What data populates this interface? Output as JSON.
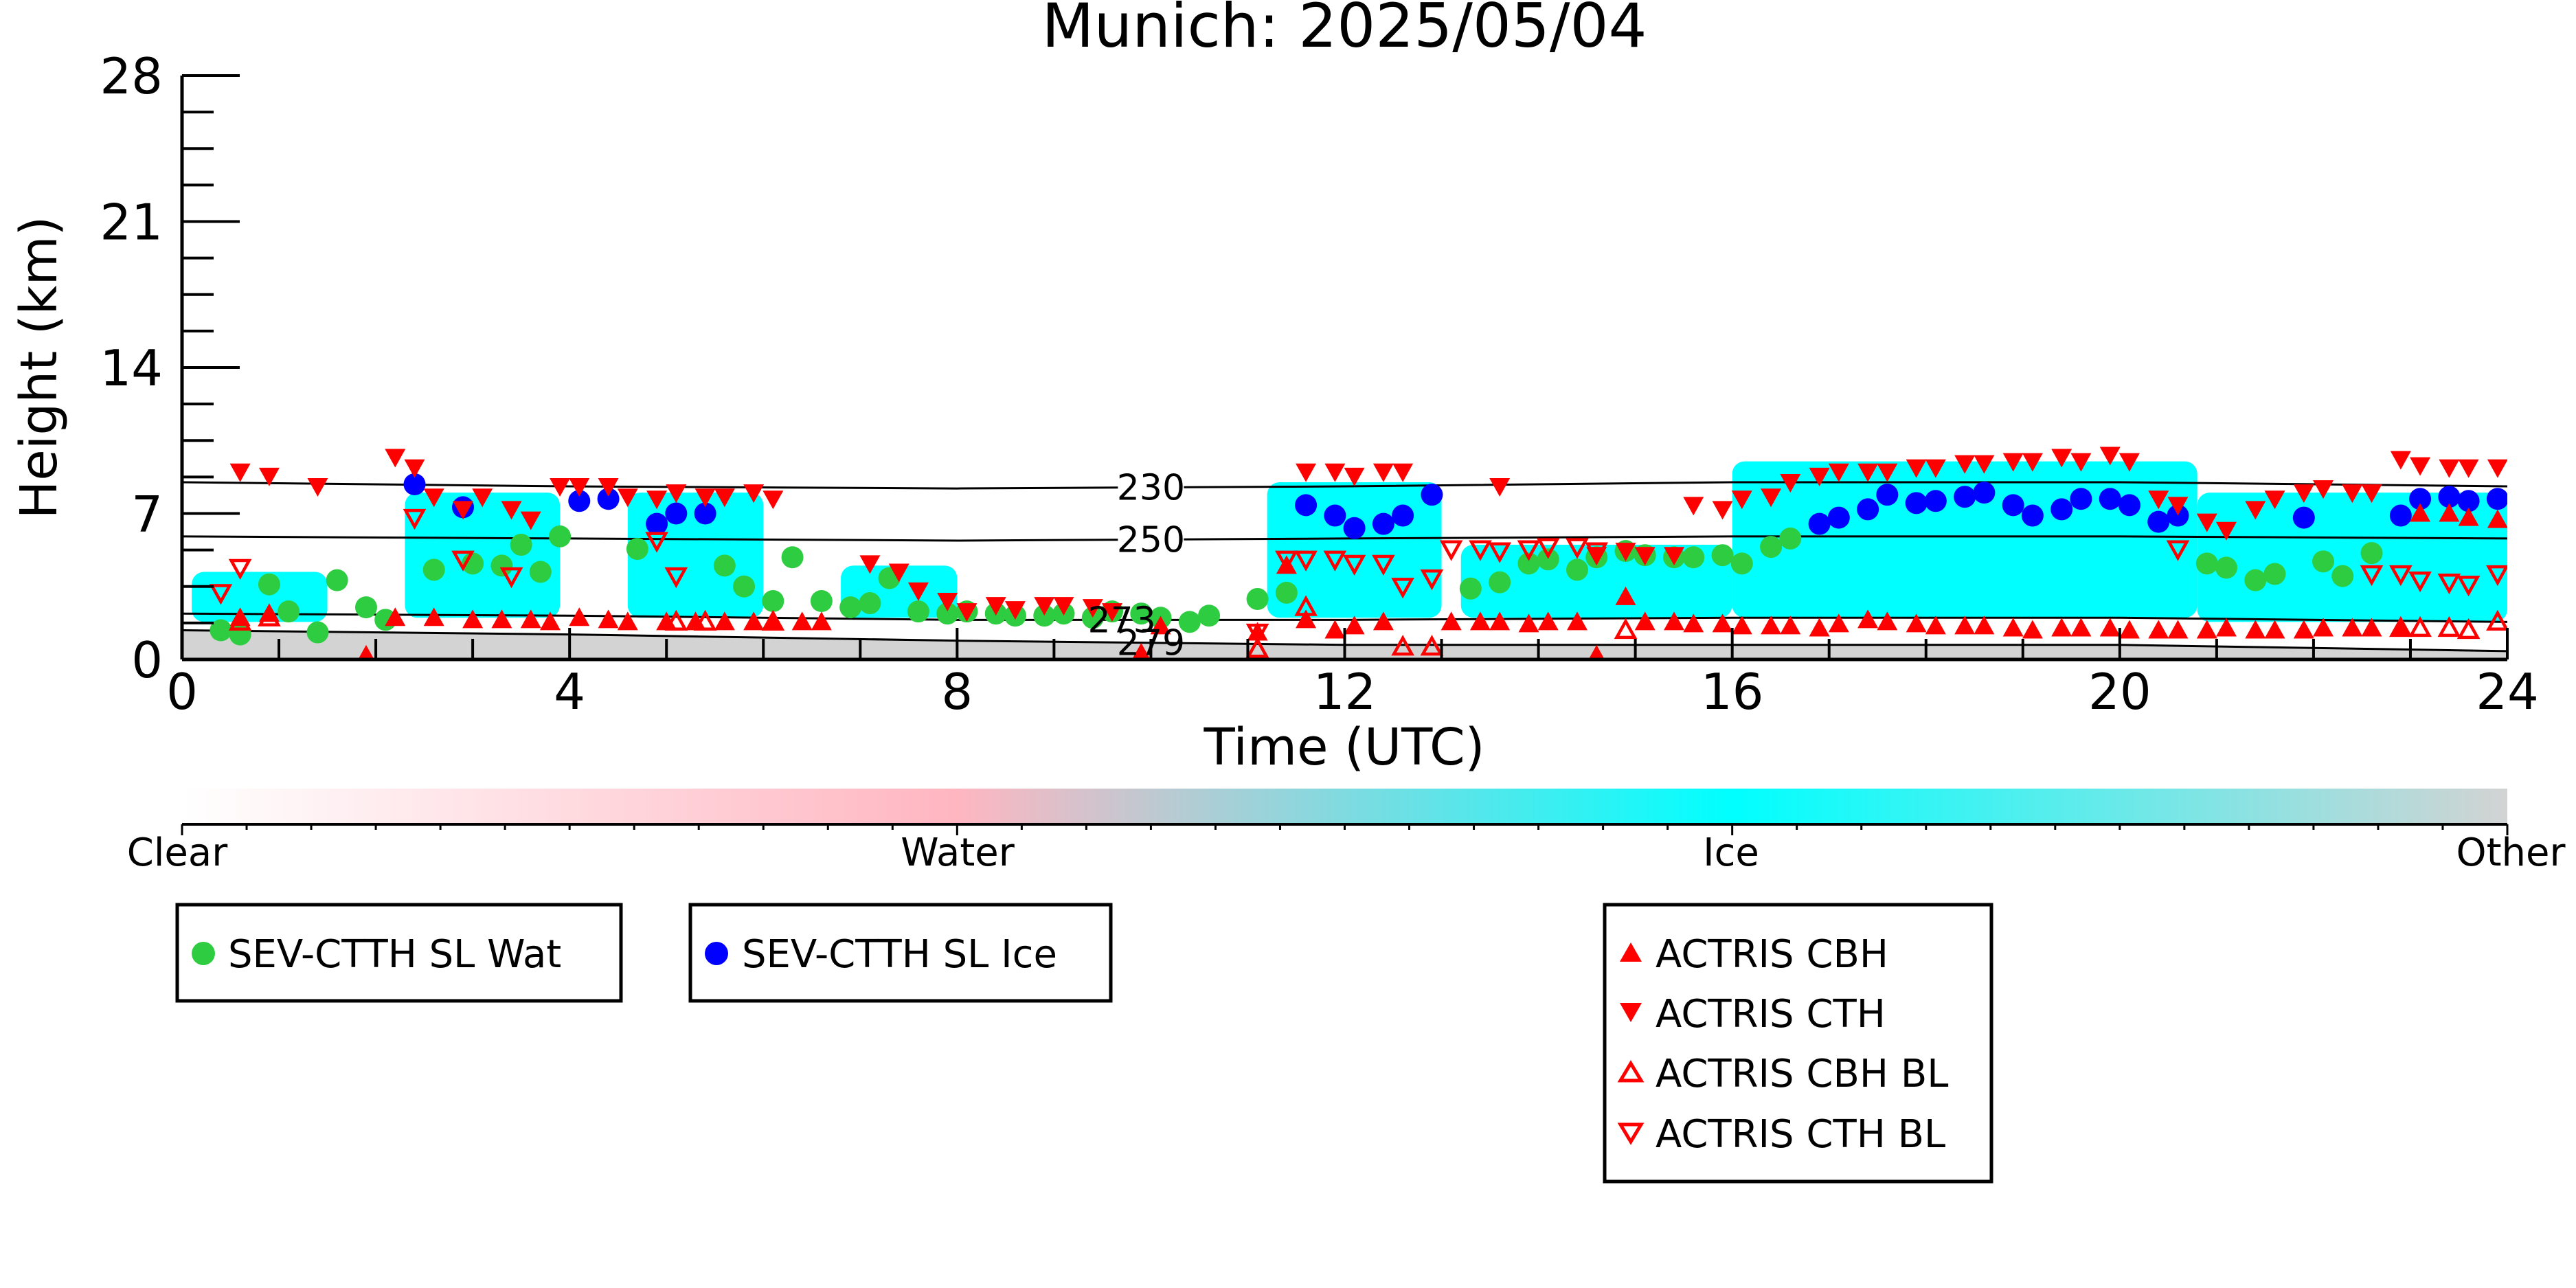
{
  "chart_data": {
    "type": "scatter",
    "title": "Munich: 2025/05/04",
    "xlabel": "Time (UTC)",
    "ylabel": "Height (km)",
    "xlim": [
      0,
      24
    ],
    "ylim": [
      0,
      28
    ],
    "xticks": [
      0,
      4,
      8,
      12,
      16,
      20,
      24
    ],
    "yticks": [
      0,
      7,
      14,
      21,
      28
    ],
    "colorbar": {
      "labels": [
        "Clear",
        "Water",
        "Ice",
        "Other"
      ],
      "colors": [
        "#ffffff",
        "#ffb6c1",
        "#00ffff",
        "#d3d3d3"
      ]
    },
    "cloud_mask_ice": [
      {
        "x": [
          0.1,
          1.5
        ],
        "y": [
          1.8,
          4.2
        ]
      },
      {
        "x": [
          2.3,
          3.9
        ],
        "y": [
          2.0,
          8.0
        ]
      },
      {
        "x": [
          4.6,
          6.0
        ],
        "y": [
          2.0,
          8.0
        ]
      },
      {
        "x": [
          6.8,
          8.0
        ],
        "y": [
          2.0,
          4.5
        ]
      },
      {
        "x": [
          11.2,
          13.0
        ],
        "y": [
          2.0,
          8.5
        ]
      },
      {
        "x": [
          13.2,
          16.0
        ],
        "y": [
          2.0,
          5.5
        ]
      },
      {
        "x": [
          16.0,
          20.8
        ],
        "y": [
          2.0,
          9.5
        ]
      },
      {
        "x": [
          20.8,
          24.0
        ],
        "y": [
          1.8,
          8.0
        ]
      }
    ],
    "isotherms": [
      {
        "label": "230",
        "x": [
          0,
          4,
          8,
          12,
          16,
          20,
          24
        ],
        "y": [
          8.5,
          8.3,
          8.2,
          8.3,
          8.5,
          8.5,
          8.3
        ]
      },
      {
        "label": "250",
        "x": [
          0,
          4,
          8,
          12,
          16,
          20,
          24
        ],
        "y": [
          5.9,
          5.8,
          5.7,
          5.8,
          5.9,
          5.9,
          5.8
        ]
      },
      {
        "label": "273",
        "x": [
          0,
          4,
          8,
          12,
          16,
          20,
          24
        ],
        "y": [
          2.2,
          2.1,
          1.9,
          1.9,
          2.0,
          2.0,
          1.8
        ]
      },
      {
        "label": "279",
        "x": [
          0,
          4,
          8,
          12,
          16,
          20,
          24
        ],
        "y": [
          1.4,
          1.2,
          0.9,
          0.7,
          0.7,
          0.7,
          0.4
        ]
      }
    ],
    "series": [
      {
        "name": "SEV-CTTH SL Wat",
        "marker": "circle",
        "color": "#2ecc40",
        "x": [
          0.4,
          0.6,
          0.9,
          1.1,
          1.4,
          1.6,
          1.9,
          2.1,
          2.6,
          3.0,
          3.3,
          3.5,
          3.7,
          3.9,
          4.7,
          5.6,
          5.8,
          6.1,
          6.3,
          6.6,
          6.9,
          7.1,
          7.3,
          7.6,
          7.9,
          8.1,
          8.4,
          8.6,
          8.9,
          9.1,
          9.4,
          9.6,
          9.9,
          10.1,
          10.4,
          10.6,
          11.1,
          11.4,
          13.3,
          13.6,
          13.9,
          14.1,
          14.4,
          14.6,
          14.9,
          15.1,
          15.4,
          15.6,
          15.9,
          16.1,
          16.4,
          16.6,
          20.9,
          21.1,
          21.4,
          21.6,
          22.1,
          22.3,
          22.6
        ],
        "y": [
          1.4,
          1.2,
          3.6,
          2.3,
          1.3,
          3.8,
          2.5,
          1.9,
          4.3,
          4.6,
          4.5,
          5.5,
          4.2,
          5.9,
          5.3,
          4.5,
          3.5,
          2.8,
          4.9,
          2.8,
          2.5,
          2.7,
          3.9,
          2.3,
          2.2,
          2.3,
          2.2,
          2.1,
          2.1,
          2.2,
          2.0,
          2.3,
          2.2,
          2.0,
          1.8,
          2.1,
          2.9,
          3.2,
          3.4,
          3.7,
          4.6,
          4.8,
          4.3,
          4.9,
          5.2,
          5.0,
          4.9,
          4.9,
          5.0,
          4.6,
          5.4,
          5.8,
          4.6,
          4.4,
          3.8,
          4.1,
          4.7,
          4.0,
          5.1
        ]
      },
      {
        "name": "SEV-CTTH SL Ice",
        "marker": "circle",
        "color": "#0000ff",
        "x": [
          2.4,
          2.9,
          4.1,
          4.4,
          4.9,
          5.1,
          5.4,
          11.6,
          11.9,
          12.1,
          12.4,
          12.6,
          12.9,
          16.9,
          17.1,
          17.4,
          17.6,
          17.9,
          18.1,
          18.4,
          18.6,
          18.9,
          19.1,
          19.4,
          19.6,
          19.9,
          20.1,
          20.4,
          20.6,
          21.9,
          22.9,
          23.1,
          23.4,
          23.6,
          23.9
        ],
        "y": [
          8.4,
          7.3,
          7.6,
          7.7,
          6.5,
          7.0,
          7.0,
          7.4,
          6.9,
          6.3,
          6.5,
          6.9,
          7.9,
          6.5,
          6.8,
          7.2,
          7.9,
          7.5,
          7.6,
          7.8,
          8.0,
          7.4,
          6.9,
          7.2,
          7.7,
          7.7,
          7.4,
          6.6,
          6.9,
          6.8,
          6.9,
          7.7,
          7.8,
          7.6,
          7.7
        ]
      },
      {
        "name": "ACTRIS CBH",
        "marker": "triangle-up",
        "color": "#ff0000",
        "filled": true,
        "x": [
          0.6,
          0.9,
          1.9,
          2.2,
          2.6,
          3.0,
          3.3,
          3.6,
          3.8,
          4.1,
          4.4,
          4.6,
          5.0,
          5.3,
          5.6,
          5.9,
          6.1,
          6.4,
          6.6,
          9.9,
          10.1,
          11.1,
          11.4,
          11.6,
          11.9,
          12.1,
          12.4,
          13.1,
          13.4,
          13.6,
          13.9,
          14.1,
          14.4,
          14.6,
          14.9,
          15.1,
          15.4,
          15.6,
          15.9,
          16.1,
          16.4,
          16.6,
          16.9,
          17.1,
          17.4,
          17.6,
          17.9,
          18.1,
          18.4,
          18.6,
          18.9,
          19.1,
          19.4,
          19.6,
          19.9,
          20.1,
          20.4,
          20.6,
          20.9,
          21.1,
          21.4,
          21.6,
          21.9,
          22.1,
          22.4,
          22.6,
          22.9,
          23.1,
          23.4,
          23.6,
          23.9
        ],
        "y": [
          2.0,
          2.2,
          0.2,
          2.0,
          2.0,
          1.9,
          1.9,
          1.9,
          1.8,
          2.0,
          1.9,
          1.8,
          1.8,
          1.8,
          1.8,
          1.8,
          1.8,
          1.8,
          1.8,
          0.3,
          1.6,
          1.3,
          4.5,
          1.9,
          1.4,
          1.6,
          1.8,
          1.8,
          1.8,
          1.8,
          1.7,
          1.8,
          1.8,
          0.2,
          3.0,
          1.8,
          1.8,
          1.7,
          1.7,
          1.6,
          1.6,
          1.6,
          1.5,
          1.7,
          1.9,
          1.8,
          1.7,
          1.6,
          1.6,
          1.6,
          1.5,
          1.4,
          1.5,
          1.5,
          1.5,
          1.4,
          1.4,
          1.4,
          1.4,
          1.5,
          1.4,
          1.4,
          1.4,
          1.5,
          1.5,
          1.5,
          1.5,
          7.0,
          7.0,
          6.8,
          6.7
        ]
      },
      {
        "name": "ACTRIS CTH",
        "marker": "triangle-down",
        "color": "#ff0000",
        "filled": true,
        "x": [
          0.6,
          0.9,
          1.4,
          2.2,
          2.4,
          2.6,
          2.9,
          3.1,
          3.4,
          3.6,
          3.9,
          4.1,
          4.4,
          4.6,
          4.9,
          5.1,
          5.4,
          5.6,
          5.9,
          6.1,
          7.1,
          7.4,
          7.6,
          7.9,
          8.1,
          8.4,
          8.6,
          8.9,
          9.1,
          9.4,
          9.6,
          11.6,
          11.9,
          12.1,
          12.4,
          12.6,
          13.6,
          14.6,
          14.9,
          15.1,
          15.4,
          15.6,
          15.9,
          16.1,
          16.4,
          16.6,
          16.9,
          17.1,
          17.4,
          17.6,
          17.9,
          18.1,
          18.4,
          18.6,
          18.9,
          19.1,
          19.4,
          19.6,
          19.9,
          20.1,
          20.4,
          20.6,
          20.9,
          21.1,
          21.4,
          21.6,
          21.9,
          22.1,
          22.4,
          22.6,
          22.9,
          23.1,
          23.4,
          23.6,
          23.9
        ],
        "y": [
          9.0,
          8.8,
          8.3,
          9.7,
          9.2,
          7.8,
          7.2,
          7.8,
          7.2,
          6.7,
          8.3,
          8.3,
          8.3,
          7.8,
          7.7,
          8.0,
          7.8,
          7.8,
          8.0,
          7.7,
          4.6,
          4.2,
          3.3,
          2.8,
          2.3,
          2.6,
          2.4,
          2.6,
          2.6,
          2.5,
          2.3,
          9.0,
          9.0,
          8.8,
          9.0,
          9.0,
          8.3,
          5.0,
          5.2,
          5.0,
          5.0,
          7.4,
          7.2,
          7.7,
          7.8,
          8.5,
          8.8,
          9.0,
          9.0,
          9.0,
          9.2,
          9.2,
          9.4,
          9.4,
          9.5,
          9.5,
          9.7,
          9.5,
          9.8,
          9.5,
          7.7,
          7.4,
          6.6,
          6.2,
          7.2,
          7.7,
          8.0,
          8.2,
          8.0,
          8.0,
          9.6,
          9.3,
          9.2,
          9.2,
          9.2
        ]
      },
      {
        "name": "ACTRIS CBH BL",
        "marker": "triangle-up",
        "color": "#ff0000",
        "filled": false,
        "x": [
          0.6,
          0.9,
          5.1,
          5.4,
          6.1,
          11.1,
          11.6,
          12.6,
          12.9,
          14.9,
          22.9,
          23.1,
          23.4,
          23.6,
          23.9
        ],
        "y": [
          1.8,
          2.0,
          1.8,
          1.8,
          1.8,
          0.5,
          2.5,
          0.6,
          0.6,
          1.4,
          1.5,
          1.5,
          1.5,
          1.4,
          1.8
        ]
      },
      {
        "name": "ACTRIS CTH BL",
        "marker": "triangle-down",
        "color": "#ff0000",
        "filled": false,
        "x": [
          0.4,
          0.6,
          2.4,
          2.9,
          3.4,
          4.9,
          5.1,
          11.1,
          11.4,
          11.6,
          11.9,
          12.1,
          12.4,
          12.6,
          12.9,
          13.1,
          13.4,
          13.6,
          13.9,
          14.1,
          14.4,
          14.6,
          20.6,
          22.6,
          22.9,
          23.1,
          23.4,
          23.6,
          23.9
        ],
        "y": [
          3.2,
          4.4,
          6.8,
          4.8,
          4.0,
          5.7,
          4.0,
          1.3,
          4.8,
          4.8,
          4.8,
          4.6,
          4.6,
          3.5,
          3.9,
          5.3,
          5.3,
          5.2,
          5.3,
          5.4,
          5.4,
          5.2,
          5.3,
          4.1,
          4.1,
          3.8,
          3.7,
          3.6,
          4.1
        ]
      }
    ]
  }
}
